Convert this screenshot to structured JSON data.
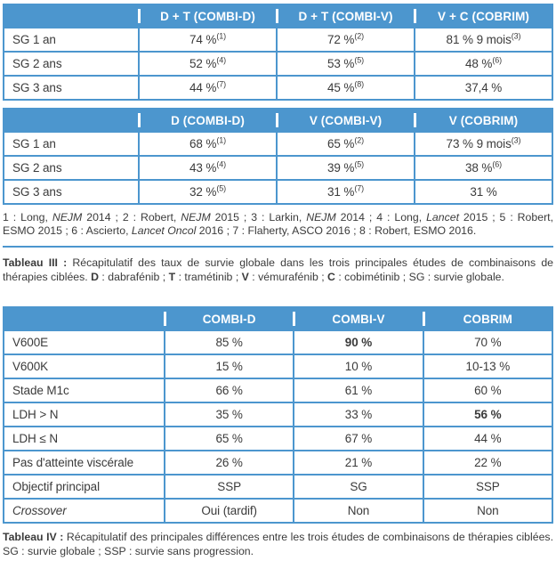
{
  "colors": {
    "accent_blue": "#4c96ce",
    "header_text": "#ffffff",
    "body_text": "#3b3b3b",
    "background": "#ffffff"
  },
  "tableau_iii": {
    "combination_table": {
      "headers": [
        "",
        "D + T (COMBI-D)",
        "D + T (COMBI-V)",
        "V + C (COBRIM)"
      ],
      "rows": [
        {
          "label": "SG 1 an",
          "cells": [
            {
              "text": "74 %",
              "sup": "(1)"
            },
            {
              "text": "72 %",
              "sup": "(2)"
            },
            {
              "text": "81 % 9 mois",
              "sup": "(3)"
            }
          ]
        },
        {
          "label": "SG 2 ans",
          "cells": [
            {
              "text": "52 %",
              "sup": "(4)"
            },
            {
              "text": "53 %",
              "sup": "(5)"
            },
            {
              "text": "48 %",
              "sup": "(6)"
            }
          ]
        },
        {
          "label": "SG 3 ans",
          "cells": [
            {
              "text": "44 %",
              "sup": "(7)"
            },
            {
              "text": "45 %",
              "sup": "(8)"
            },
            {
              "text": "37,4 %"
            }
          ]
        }
      ]
    },
    "monotherapy_table": {
      "headers": [
        "",
        "D (COMBI-D)",
        "V (COMBI-V)",
        "V (COBRIM)"
      ],
      "rows": [
        {
          "label": "SG 1 an",
          "cells": [
            {
              "text": "68 %",
              "sup": "(1)"
            },
            {
              "text": "65 %",
              "sup": "(2)"
            },
            {
              "text": "73 % 9 mois",
              "sup": "(3)"
            }
          ]
        },
        {
          "label": "SG 2 ans",
          "cells": [
            {
              "text": "43 %",
              "sup": "(4)"
            },
            {
              "text": "39 %",
              "sup": "(5)"
            },
            {
              "text": "38 %",
              "sup": "(6)"
            }
          ]
        },
        {
          "label": "SG 3 ans",
          "cells": [
            {
              "text": "32 %",
              "sup": "(5)"
            },
            {
              "text": "31 %",
              "sup": "(7)"
            },
            {
              "text": "31 %"
            }
          ]
        }
      ]
    },
    "references_segments": [
      {
        "text": "1 : Long, "
      },
      {
        "text": "NEJM",
        "italic": true
      },
      {
        "text": " 2014 ; 2 : Robert, "
      },
      {
        "text": "NEJM",
        "italic": true
      },
      {
        "text": " 2015 ; 3 : Larkin, "
      },
      {
        "text": "NEJM",
        "italic": true
      },
      {
        "text": " 2014 ; 4 : Long, "
      },
      {
        "text": "Lancet",
        "italic": true
      },
      {
        "text": " 2015 ; 5 : Robert, ESMO 2015 ; 6 : Ascierto, "
      },
      {
        "text": "Lancet Oncol",
        "italic": true
      },
      {
        "text": " 2016 ; 7 : Flaherty, ASCO 2016 ; 8 : Robert, ESMO 2016."
      }
    ],
    "caption_segments": [
      {
        "text": "Tableau III :",
        "bold": true
      },
      {
        "text": " Récapitulatif des taux de survie globale dans les trois principales études de combinaisons de thérapies ciblées. "
      },
      {
        "text": "D",
        "bold": true
      },
      {
        "text": " : dabrafénib ; "
      },
      {
        "text": "T",
        "bold": true
      },
      {
        "text": " : tramétinib ; "
      },
      {
        "text": "V",
        "bold": true
      },
      {
        "text": " : vémurafénib ; "
      },
      {
        "text": "C",
        "bold": true
      },
      {
        "text": " : cobimétinib ; SG : survie globale."
      }
    ]
  },
  "tableau_iv": {
    "table": {
      "headers": [
        "",
        "COMBI-D",
        "COMBI-V",
        "COBRIM"
      ],
      "rows": [
        {
          "label": "V600E",
          "cells": [
            {
              "text": "85 %"
            },
            {
              "text": "90 %",
              "bold": true
            },
            {
              "text": "70 %"
            }
          ]
        },
        {
          "label": "V600K",
          "cells": [
            {
              "text": "15 %"
            },
            {
              "text": "10 %"
            },
            {
              "text": "10-13 %"
            }
          ]
        },
        {
          "label": "Stade M1c",
          "cells": [
            {
              "text": "66 %"
            },
            {
              "text": "61 %"
            },
            {
              "text": "60 %"
            }
          ]
        },
        {
          "label": "LDH > N",
          "cells": [
            {
              "text": "35 %"
            },
            {
              "text": "33 %"
            },
            {
              "text": "56 %",
              "bold": true
            }
          ]
        },
        {
          "label": "LDH ≤ N",
          "cells": [
            {
              "text": "65 %"
            },
            {
              "text": "67 %"
            },
            {
              "text": "44 %"
            }
          ]
        },
        {
          "label": "Pas d'atteinte viscérale",
          "cells": [
            {
              "text": "26 %"
            },
            {
              "text": "21 %"
            },
            {
              "text": "22 %"
            }
          ]
        },
        {
          "label": "Objectif principal",
          "cells": [
            {
              "text": "SSP"
            },
            {
              "text": "SG"
            },
            {
              "text": "SSP"
            }
          ]
        },
        {
          "label": "Crossover",
          "label_italic": true,
          "cells": [
            {
              "text": "Oui (tardif)"
            },
            {
              "text": "Non"
            },
            {
              "text": "Non"
            }
          ]
        }
      ]
    },
    "caption_segments": [
      {
        "text": "Tableau IV :",
        "bold": true
      },
      {
        "text": " Récapitulatif des principales différences entre les trois études de combinaisons de thérapies ciblées. SG : survie globale ; SSP : survie sans progression."
      }
    ]
  }
}
